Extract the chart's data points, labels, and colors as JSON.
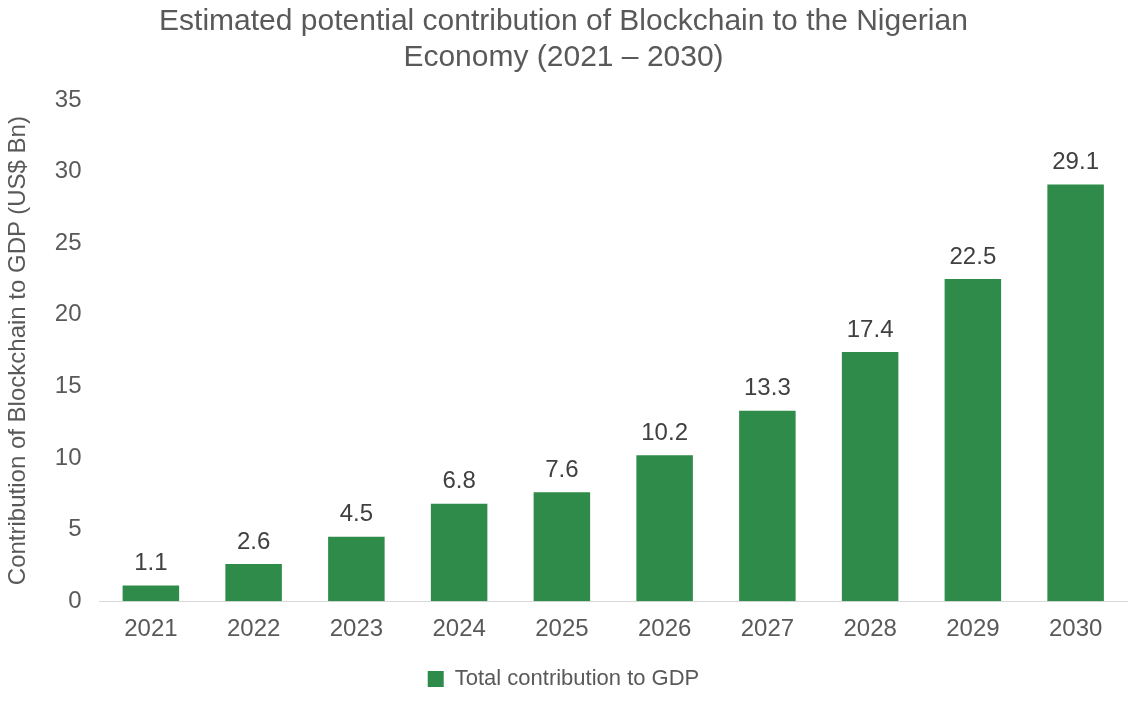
{
  "chart_data": {
    "type": "bar",
    "title": "Estimated potential contribution of Blockchain to the Nigerian Economy (2021 – 2030)",
    "ylabel": "Contribution of Blockchain to GDP (US$ Bn)",
    "categories": [
      "2021",
      "2022",
      "2023",
      "2024",
      "2025",
      "2026",
      "2027",
      "2028",
      "2029",
      "2030"
    ],
    "series": [
      {
        "name": "Total contribution to GDP",
        "color": "#2e8b4a",
        "values": [
          1.1,
          2.6,
          4.5,
          6.8,
          7.6,
          10.2,
          13.3,
          17.4,
          22.5,
          29.1
        ]
      }
    ],
    "ylim": [
      0,
      35
    ],
    "yticks": [
      0,
      5,
      10,
      15,
      20,
      25,
      30,
      35
    ],
    "grid": false,
    "legend": "bottom",
    "data_labels": true
  }
}
